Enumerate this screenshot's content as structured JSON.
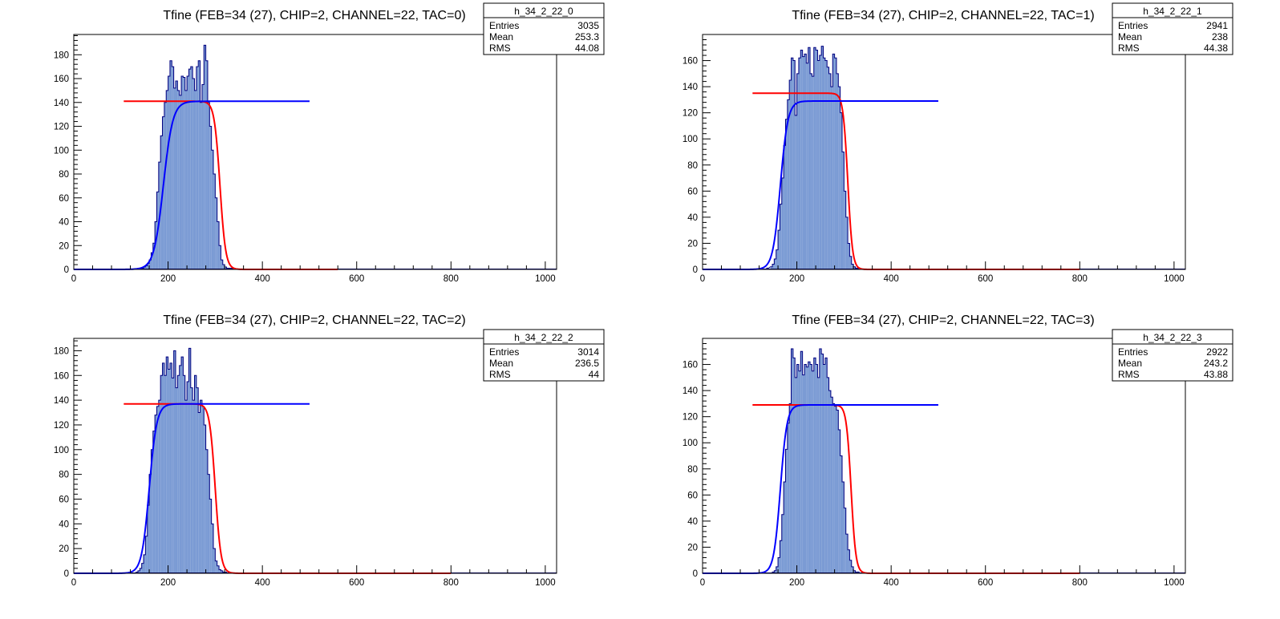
{
  "chart_data": [
    {
      "type": "histogram",
      "title": "Tfine (FEB=34 (27), CHIP=2, CHANNEL=22, TAC=0)",
      "xlim": [
        0,
        1024
      ],
      "ylim": [
        0,
        197
      ],
      "xticks": [
        0,
        200,
        400,
        600,
        800,
        1000
      ],
      "yticks": [
        0,
        20,
        40,
        60,
        80,
        100,
        120,
        140,
        160,
        180
      ],
      "hist": {
        "bin_width": 4,
        "edges": [
          136,
          144,
          148,
          152,
          156,
          160,
          164,
          168,
          172,
          176,
          180,
          184,
          188,
          192,
          196,
          200,
          204,
          208,
          212,
          216,
          220,
          224,
          228,
          232,
          236,
          240,
          244,
          248,
          252,
          256,
          260,
          264,
          268,
          272,
          276,
          280,
          284,
          288,
          292,
          296,
          300,
          304,
          308,
          312,
          316,
          320,
          324,
          328,
          332,
          336,
          340
        ],
        "counts": [
          1,
          1,
          2,
          3,
          5,
          8,
          14,
          22,
          40,
          65,
          90,
          112,
          128,
          140,
          150,
          162,
          175,
          170,
          152,
          158,
          150,
          146,
          162,
          161,
          150,
          162,
          168,
          170,
          160,
          150,
          170,
          175,
          140,
          155,
          188,
          175,
          140,
          120,
          100,
          80,
          60,
          40,
          20,
          8,
          4,
          2,
          1,
          1,
          1,
          0
        ]
      },
      "fits": [
        {
          "color": "#ff0000",
          "plateau": 141,
          "x_from": 106,
          "x_to": 560,
          "rise_center": 190,
          "rise_width": 10,
          "fall_center": 310,
          "fall_width": 6,
          "mode": "fall"
        },
        {
          "color": "#0000ff",
          "plateau": 141,
          "x_from": 0,
          "x_to": 500,
          "rise_center": 190,
          "rise_width": 10,
          "mode": "rise"
        }
      ],
      "stats": {
        "name": "h_34_2_22_0",
        "rows": [
          {
            "label": "Entries",
            "value": "3035"
          },
          {
            "label": "Mean",
            "value": "253.3"
          },
          {
            "label": "RMS",
            "value": "44.08"
          }
        ]
      }
    },
    {
      "type": "histogram",
      "title": "Tfine (FEB=34 (27), CHIP=2, CHANNEL=22, TAC=1)",
      "xlim": [
        0,
        1024
      ],
      "ylim": [
        0,
        180
      ],
      "xticks": [
        0,
        200,
        400,
        600,
        800,
        1000
      ],
      "yticks": [
        0,
        20,
        40,
        60,
        80,
        100,
        120,
        140,
        160
      ],
      "hist": {
        "bin_width": 4,
        "edges": [
          136,
          144,
          148,
          152,
          156,
          160,
          164,
          168,
          172,
          176,
          180,
          184,
          188,
          192,
          196,
          200,
          204,
          208,
          212,
          216,
          220,
          224,
          228,
          232,
          236,
          240,
          244,
          248,
          252,
          256,
          260,
          264,
          268,
          272,
          276,
          280,
          284,
          288,
          292,
          296,
          300,
          304,
          308,
          312,
          316,
          320,
          324,
          328,
          332,
          336,
          340
        ],
        "counts": [
          1,
          2,
          4,
          8,
          15,
          30,
          50,
          70,
          95,
          115,
          130,
          145,
          162,
          160,
          118,
          150,
          162,
          168,
          163,
          165,
          158,
          170,
          150,
          148,
          170,
          168,
          160,
          164,
          171,
          162,
          160,
          155,
          150,
          140,
          165,
          162,
          150,
          140,
          120,
          90,
          60,
          40,
          20,
          10,
          4,
          2,
          1,
          1,
          0,
          0
        ]
      },
      "fits": [
        {
          "color": "#ff0000",
          "plateau": 135,
          "x_from": 106,
          "x_to": 800,
          "rise_center": 165,
          "rise_width": 8,
          "fall_center": 308,
          "fall_width": 5,
          "mode": "fall"
        },
        {
          "color": "#0000ff",
          "plateau": 129,
          "x_from": 0,
          "x_to": 500,
          "rise_center": 165,
          "rise_width": 8,
          "mode": "rise"
        }
      ],
      "stats": {
        "name": "h_34_2_22_1",
        "rows": [
          {
            "label": "Entries",
            "value": "2941"
          },
          {
            "label": "Mean",
            "value": "238"
          },
          {
            "label": "RMS",
            "value": "44.38"
          }
        ]
      }
    },
    {
      "type": "histogram",
      "title": "Tfine (FEB=34 (27), CHIP=2, CHANNEL=22, TAC=2)",
      "xlim": [
        0,
        1024
      ],
      "ylim": [
        0,
        190
      ],
      "xticks": [
        0,
        200,
        400,
        600,
        800,
        1000
      ],
      "yticks": [
        0,
        20,
        40,
        60,
        80,
        100,
        120,
        140,
        160,
        180
      ],
      "hist": {
        "bin_width": 4,
        "edges": [
          132,
          136,
          140,
          144,
          148,
          152,
          156,
          160,
          164,
          168,
          172,
          176,
          180,
          184,
          188,
          192,
          196,
          200,
          204,
          208,
          212,
          216,
          220,
          224,
          228,
          232,
          236,
          240,
          244,
          248,
          252,
          256,
          260,
          264,
          268,
          272,
          276,
          280,
          284,
          288,
          292,
          296,
          300,
          304,
          308,
          312,
          316,
          320,
          324,
          328,
          332,
          336
        ],
        "counts": [
          1,
          2,
          4,
          8,
          15,
          30,
          55,
          80,
          100,
          115,
          128,
          135,
          140,
          160,
          170,
          160,
          175,
          165,
          170,
          158,
          180,
          150,
          160,
          168,
          175,
          160,
          140,
          155,
          182,
          150,
          140,
          160,
          150,
          130,
          140,
          135,
          120,
          100,
          80,
          60,
          40,
          20,
          10,
          6,
          3,
          2,
          1,
          1,
          0,
          0,
          0
        ]
      },
      "fits": [
        {
          "color": "#ff0000",
          "plateau": 137,
          "x_from": 106,
          "x_to": 800,
          "rise_center": 160,
          "rise_width": 8,
          "fall_center": 300,
          "fall_width": 6,
          "mode": "fall"
        },
        {
          "color": "#0000ff",
          "plateau": 137,
          "x_from": 0,
          "x_to": 500,
          "rise_center": 160,
          "rise_width": 8,
          "mode": "rise"
        }
      ],
      "stats": {
        "name": "h_34_2_22_2",
        "rows": [
          {
            "label": "Entries",
            "value": "3014"
          },
          {
            "label": "Mean",
            "value": "236.5"
          },
          {
            "label": "RMS",
            "value": "44"
          }
        ]
      }
    },
    {
      "type": "histogram",
      "title": "Tfine (FEB=34 (27), CHIP=2, CHANNEL=22, TAC=3)",
      "xlim": [
        0,
        1024
      ],
      "ylim": [
        0,
        180
      ],
      "xticks": [
        0,
        200,
        400,
        600,
        800,
        1000
      ],
      "yticks": [
        0,
        20,
        40,
        60,
        80,
        100,
        120,
        140,
        160
      ],
      "hist": {
        "bin_width": 4,
        "edges": [
          148,
          152,
          156,
          160,
          164,
          168,
          172,
          176,
          180,
          184,
          188,
          192,
          196,
          200,
          204,
          208,
          212,
          216,
          220,
          224,
          228,
          232,
          236,
          240,
          244,
          248,
          252,
          256,
          260,
          264,
          268,
          272,
          276,
          280,
          284,
          288,
          292,
          296,
          300,
          304,
          308,
          312,
          316,
          320,
          324,
          328,
          332,
          336,
          340,
          344,
          348
        ],
        "counts": [
          1,
          2,
          5,
          12,
          25,
          45,
          70,
          95,
          115,
          130,
          172,
          165,
          150,
          160,
          155,
          170,
          152,
          160,
          158,
          162,
          160,
          155,
          165,
          160,
          150,
          172,
          168,
          160,
          165,
          150,
          140,
          135,
          130,
          128,
          125,
          110,
          90,
          70,
          50,
          30,
          18,
          10,
          5,
          2,
          1,
          1,
          0,
          0,
          0,
          0
        ]
      },
      "fits": [
        {
          "color": "#ff0000",
          "plateau": 129,
          "x_from": 106,
          "x_to": 800,
          "rise_center": 165,
          "rise_width": 7,
          "fall_center": 315,
          "fall_width": 5,
          "mode": "fall"
        },
        {
          "color": "#0000ff",
          "plateau": 129,
          "x_from": 0,
          "x_to": 500,
          "rise_center": 165,
          "rise_width": 7,
          "mode": "rise"
        }
      ],
      "stats": {
        "name": "h_34_2_22_3",
        "rows": [
          {
            "label": "Entries",
            "value": "2922"
          },
          {
            "label": "Mean",
            "value": "243.2"
          },
          {
            "label": "RMS",
            "value": "43.88"
          }
        ]
      }
    }
  ],
  "colors": {
    "fill": "#7b9bd4",
    "outline": "#000080",
    "red_fit": "#ff0000",
    "blue_fit": "#0000ff"
  }
}
